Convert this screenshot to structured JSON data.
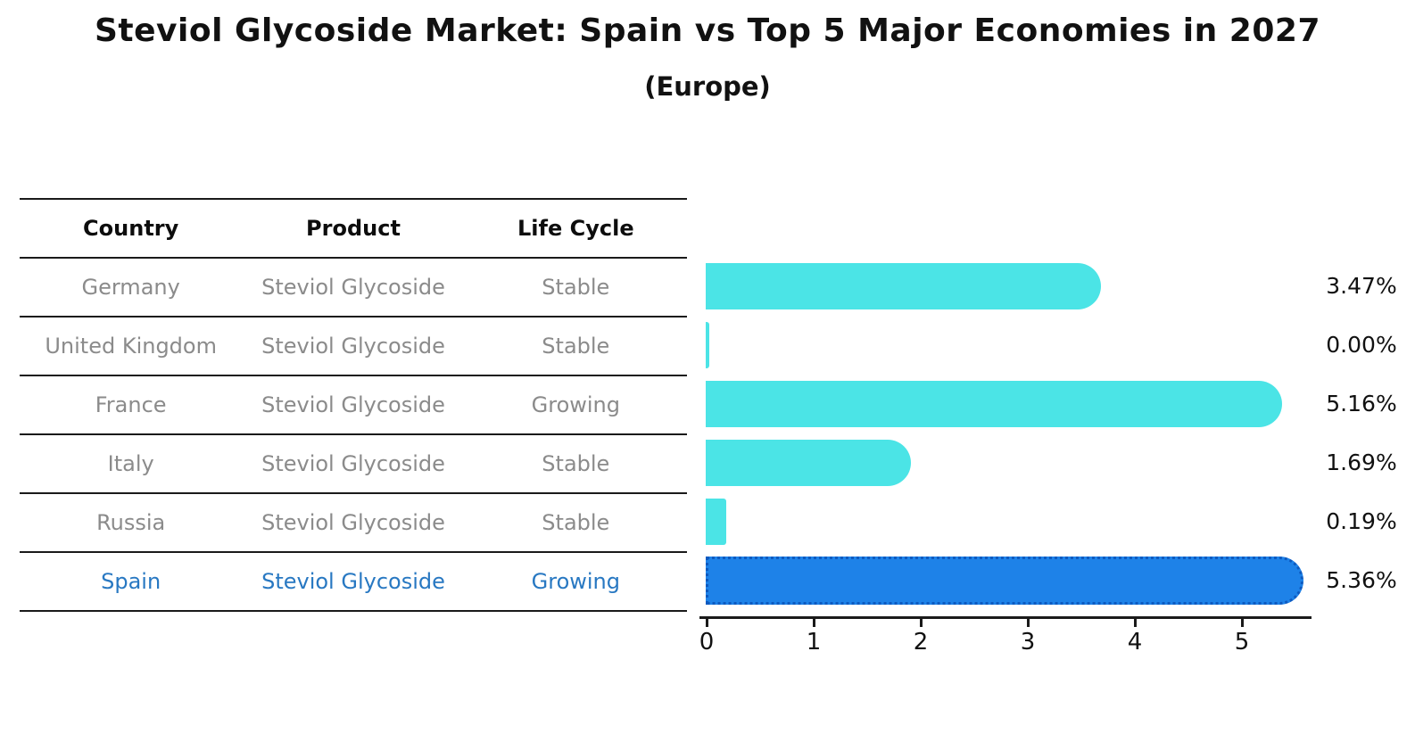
{
  "title": "Steviol Glycoside Market: Spain vs Top 5 Major Economies in 2027",
  "subtitle": "(Europe)",
  "table": {
    "headers": [
      "Country",
      "Product",
      "Life Cycle"
    ],
    "rows": [
      {
        "country": "Germany",
        "product": "Steviol Glycoside",
        "life_cycle": "Stable",
        "highlight": false
      },
      {
        "country": "United Kingdom",
        "product": "Steviol Glycoside",
        "life_cycle": "Stable",
        "highlight": false
      },
      {
        "country": "France",
        "product": "Steviol Glycoside",
        "life_cycle": "Growing",
        "highlight": false
      },
      {
        "country": "Italy",
        "product": "Steviol Glycoside",
        "life_cycle": "Stable",
        "highlight": false
      },
      {
        "country": "Russia",
        "product": "Steviol Glycoside",
        "life_cycle": "Stable",
        "highlight": false
      },
      {
        "country": "Spain",
        "product": "Steviol Glycoside",
        "life_cycle": "Growing",
        "highlight": true
      }
    ]
  },
  "chart_data": {
    "type": "bar",
    "orientation": "horizontal",
    "title": "Steviol Glycoside Market: Spain vs Top 5 Major Economies in 2027",
    "subtitle": "(Europe)",
    "categories": [
      "Germany",
      "United Kingdom",
      "France",
      "Italy",
      "Russia",
      "Spain"
    ],
    "values": [
      3.47,
      0.0,
      5.16,
      1.69,
      0.19,
      5.36
    ],
    "value_labels": [
      "3.47%",
      "0.00%",
      "5.16%",
      "1.69%",
      "0.19%",
      "5.36%"
    ],
    "highlight_index": 5,
    "xticks": [
      0,
      1,
      2,
      3,
      4,
      5
    ],
    "xlim": [
      0,
      5.65
    ],
    "grid": false,
    "legend": "none",
    "bar_color": "#4be4e6",
    "highlight_fill": "#1e82e8",
    "highlight_border": "#0d5ac0",
    "highlight_text": "#2878c2",
    "row_text_color": "#8b8b8b",
    "line_color": "#1a1a1a"
  }
}
